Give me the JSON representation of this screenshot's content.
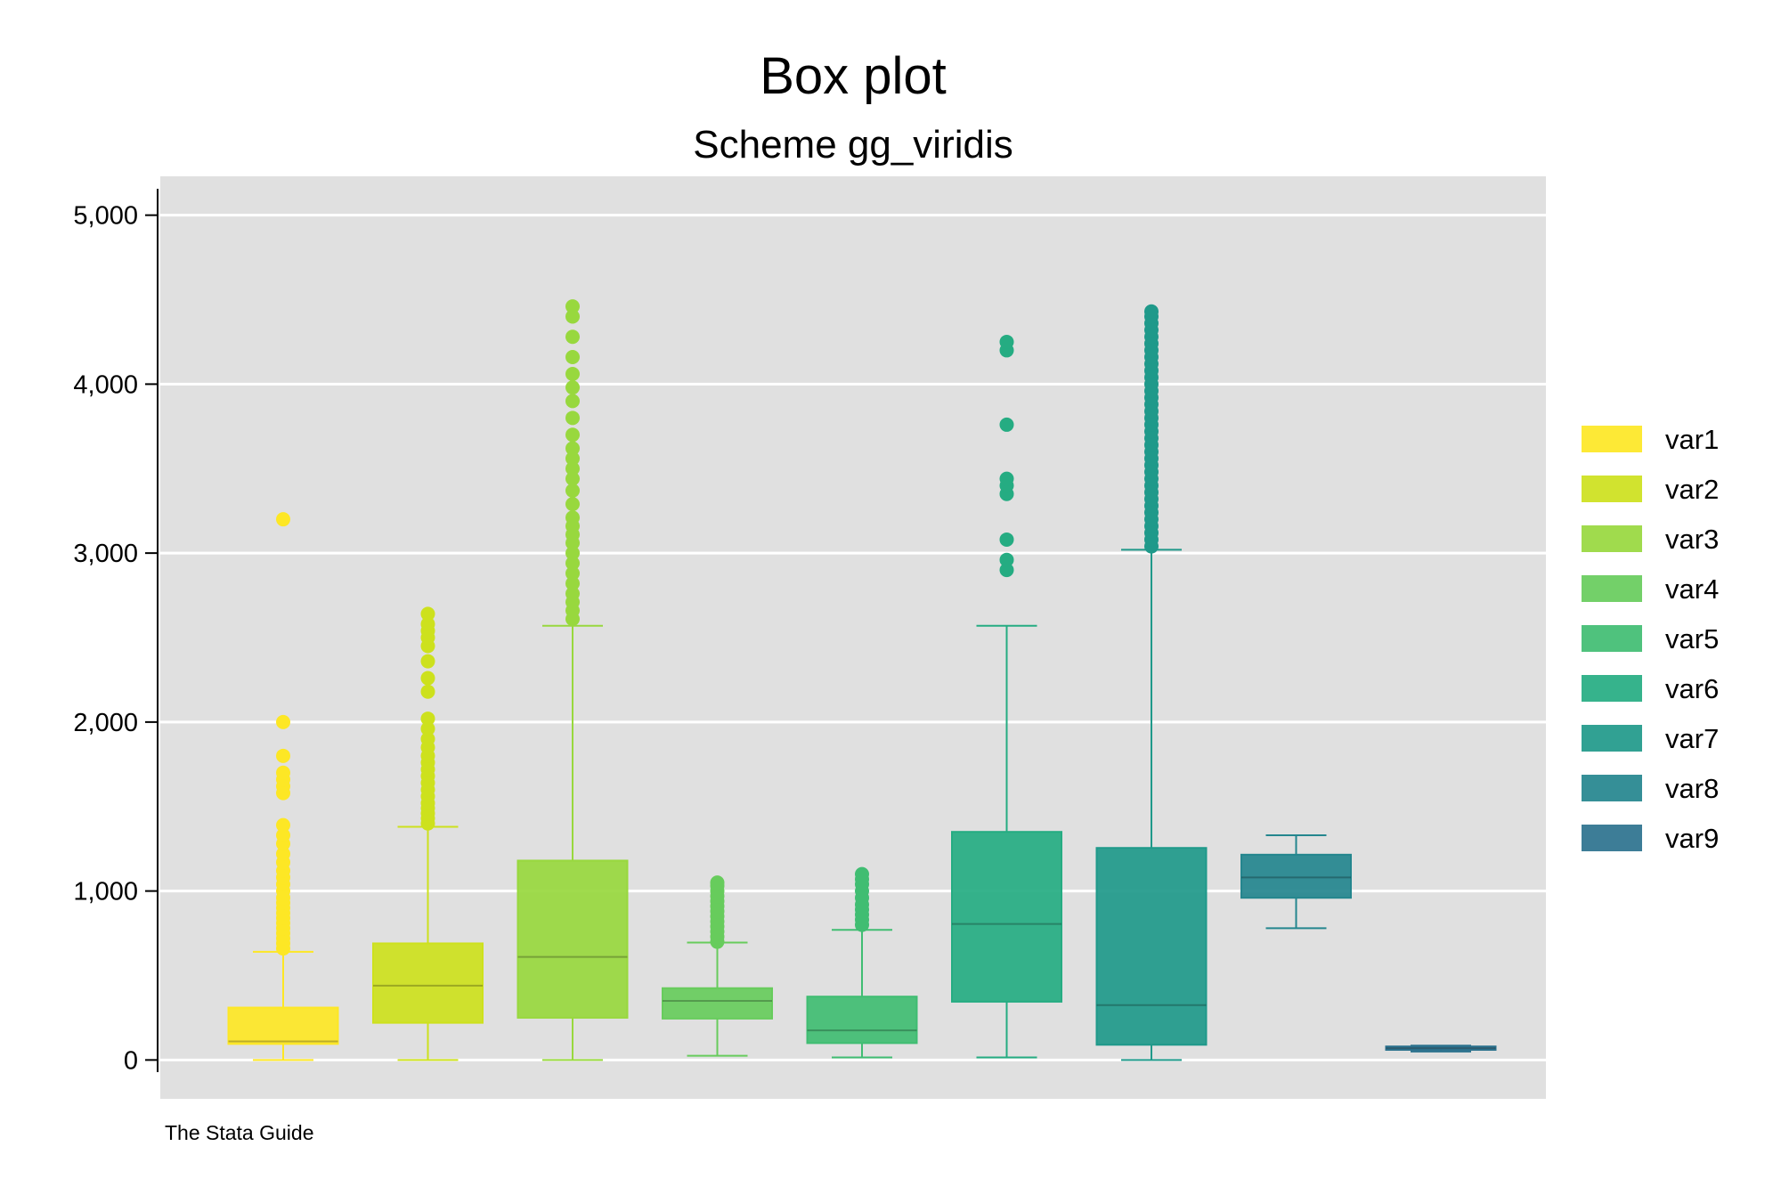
{
  "chart_data": {
    "type": "box",
    "title": "Box plot",
    "subtitle": "Scheme gg_viridis",
    "note": "The Stata Guide",
    "ylim": [
      -230,
      5230
    ],
    "yticks": [
      0,
      1000,
      2000,
      3000,
      4000,
      5000
    ],
    "ytick_labels": [
      "0",
      "1,000",
      "2,000",
      "3,000",
      "4,000",
      "5,000"
    ],
    "grid": true,
    "legend_position": "right",
    "series": [
      {
        "name": "var1",
        "color": "#fde725",
        "whisker_low": 0,
        "q1": 95,
        "median": 110,
        "q3": 310,
        "whisker_high": 640,
        "outliers": [
          660,
          690,
          720,
          750,
          780,
          810,
          840,
          870,
          900,
          930,
          960,
          1000,
          1040,
          1080,
          1120,
          1170,
          1220,
          1280,
          1330,
          1390,
          1580,
          1620,
          1660,
          1700,
          1800,
          2000,
          3200
        ]
      },
      {
        "name": "var2",
        "color": "#cde11d",
        "whisker_low": 0,
        "q1": 220,
        "median": 440,
        "q3": 690,
        "whisker_high": 1380,
        "outliers": [
          1400,
          1430,
          1460,
          1490,
          1520,
          1560,
          1600,
          1640,
          1680,
          1720,
          1760,
          1800,
          1850,
          1900,
          1960,
          2020,
          2180,
          2260,
          2360,
          2450,
          2500,
          2540,
          2580,
          2640
        ]
      },
      {
        "name": "var3",
        "color": "#98d83e",
        "whisker_low": 0,
        "q1": 250,
        "median": 610,
        "q3": 1180,
        "whisker_high": 2570,
        "outliers": [
          2610,
          2660,
          2710,
          2760,
          2820,
          2880,
          2940,
          3000,
          3060,
          3110,
          3160,
          3210,
          3290,
          3370,
          3440,
          3500,
          3560,
          3620,
          3700,
          3800,
          3900,
          3980,
          4060,
          4160,
          4280,
          4400,
          4460
        ]
      },
      {
        "name": "var4",
        "color": "#67cc5c",
        "whisker_low": 25,
        "q1": 245,
        "median": 350,
        "q3": 425,
        "whisker_high": 695,
        "outliers": [
          700,
          730,
          760,
          790,
          820,
          850,
          880,
          910,
          940,
          970,
          1000,
          1030,
          1050
        ]
      },
      {
        "name": "var5",
        "color": "#40bd72",
        "whisker_low": 15,
        "q1": 100,
        "median": 175,
        "q3": 375,
        "whisker_high": 770,
        "outliers": [
          800,
          830,
          860,
          890,
          920,
          960,
          1000,
          1040,
          1070,
          1100
        ]
      },
      {
        "name": "var6",
        "color": "#25ac82",
        "whisker_low": 15,
        "q1": 345,
        "median": 805,
        "q3": 1350,
        "whisker_high": 2570,
        "outliers": [
          2900,
          2960,
          3080,
          3350,
          3400,
          3440,
          3760,
          4200,
          4250
        ]
      },
      {
        "name": "var7",
        "color": "#1f998a",
        "whisker_low": 0,
        "q1": 90,
        "median": 325,
        "q3": 1255,
        "whisker_high": 3020,
        "outliers": [
          3040,
          3080,
          3120,
          3160,
          3200,
          3240,
          3280,
          3320,
          3360,
          3400,
          3440,
          3480,
          3520,
          3560,
          3600,
          3640,
          3680,
          3720,
          3760,
          3800,
          3840,
          3880,
          3920,
          3960,
          4000,
          4040,
          4080,
          4120,
          4160,
          4200,
          4240,
          4280,
          4320,
          4360,
          4400,
          4430
        ]
      },
      {
        "name": "var8",
        "color": "#24868e",
        "whisker_low": 780,
        "q1": 960,
        "median": 1080,
        "q3": 1215,
        "whisker_high": 1330,
        "outliers": []
      },
      {
        "name": "var9",
        "color": "#2c728e",
        "whisker_low": 50,
        "q1": 60,
        "median": 70,
        "q3": 80,
        "whisker_high": 85,
        "outliers": []
      }
    ]
  }
}
